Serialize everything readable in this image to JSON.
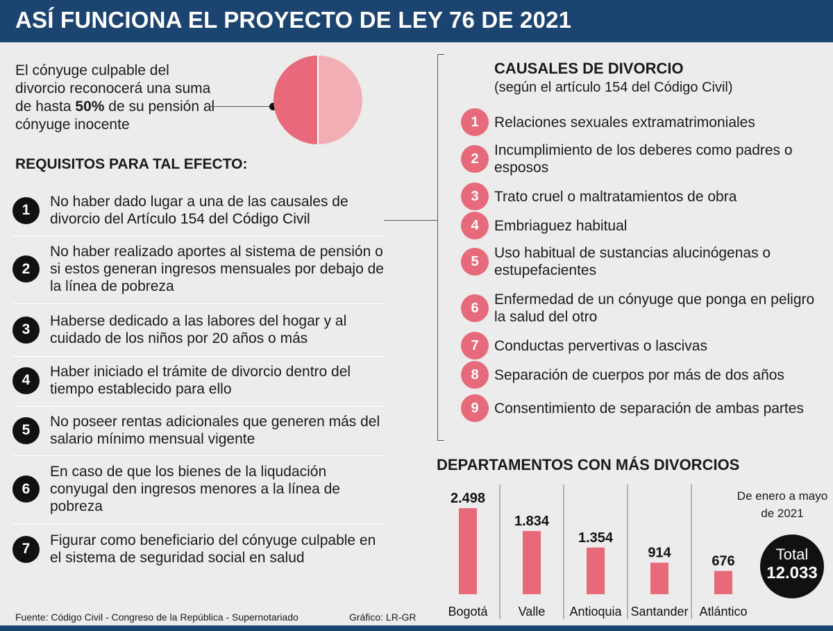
{
  "header": {
    "title": "ASÍ FUNCIONA EL PROYECTO DE LEY 76 DE 2021"
  },
  "intro": {
    "text_before": "El cónyuge culpable del divorcio reconocerá una suma de hasta ",
    "percent": "50%",
    "text_after": " de su pensión al cónyuge inocente",
    "pie_share": 0.5,
    "colors": {
      "share": "#e8697a",
      "rest": "#f2aeb4"
    }
  },
  "requirements": {
    "title": "REQUISITOS PARA TAL EFECTO:",
    "items": [
      {
        "num": "1",
        "text": "No haber dado lugar a una de las causales de divorcio del ",
        "bold": "Artículo 154 del Código Civil"
      },
      {
        "num": "2",
        "text": "No haber realizado aportes al sistema de pensión o si estos generan ingresos mensuales por debajo de la línea de pobreza"
      },
      {
        "num": "3",
        "text": "Haberse dedicado a las labores del hogar y al cuidado de los niños por 20 años o más"
      },
      {
        "num": "4",
        "text": "Haber iniciado el trámite de divorcio dentro del tiempo establecido para ello"
      },
      {
        "num": "5",
        "text": "No poseer rentas adicionales que generen más del salario mínimo mensual vigente"
      },
      {
        "num": "6",
        "text": "En caso de que los bienes de la liqudación conyugal den ingresos menores a la línea de pobreza"
      },
      {
        "num": "7",
        "text": "Figurar como beneficiario del cónyuge culpable en el sistema de seguridad social en salud"
      }
    ]
  },
  "causales": {
    "title": "CAUSALES DE DIVORCIO",
    "subtitle": "(según el artículo 154 del Código Civil)",
    "items": [
      {
        "num": "1",
        "text": "Relaciones sexuales extramatrimoniales"
      },
      {
        "num": "2",
        "text": "Incumplimiento de los deberes como padres o esposos"
      },
      {
        "num": "3",
        "text": "Trato cruel o maltratamientos de obra"
      },
      {
        "num": "4",
        "text": "Embriaguez habitual"
      },
      {
        "num": "5",
        "text": "Uso habitual de sustancias alucinógenas o estupefacientes"
      },
      {
        "num": "6",
        "text": "Enfermedad de un cónyuge que ponga en peligro la salud del otro"
      },
      {
        "num": "7",
        "text": "Conductas pervertivas o lascivas"
      },
      {
        "num": "8",
        "text": "Separación de cuerpos por más de dos años"
      },
      {
        "num": "9",
        "text": "Consentimiento de separación de ambas partes"
      }
    ]
  },
  "departments": {
    "title": "DEPARTAMENTOS CON MÁS DIVORCIOS",
    "period": "De enero a mayo de 2021",
    "total_label": "Total",
    "total_value": "12.033"
  },
  "chart_data": {
    "type": "bar",
    "categories": [
      "Bogotá",
      "Valle",
      "Antioquia",
      "Santander",
      "Atlántico"
    ],
    "values": [
      2498,
      1834,
      1354,
      914,
      676
    ],
    "value_labels": [
      "2.498",
      "1.834",
      "1.354",
      "914",
      "676"
    ],
    "title": "DEPARTAMENTOS CON MÁS DIVORCIOS",
    "xlabel": "",
    "ylabel": "",
    "ylim": [
      0,
      2498
    ],
    "grid": false,
    "colors": {
      "bar": "#e8697a",
      "separator": "#777777"
    }
  },
  "footer": {
    "source": "Fuente: Código Civil - Congreso de la República - Supernotariado",
    "credit": "Gráfico: LR-GR"
  }
}
